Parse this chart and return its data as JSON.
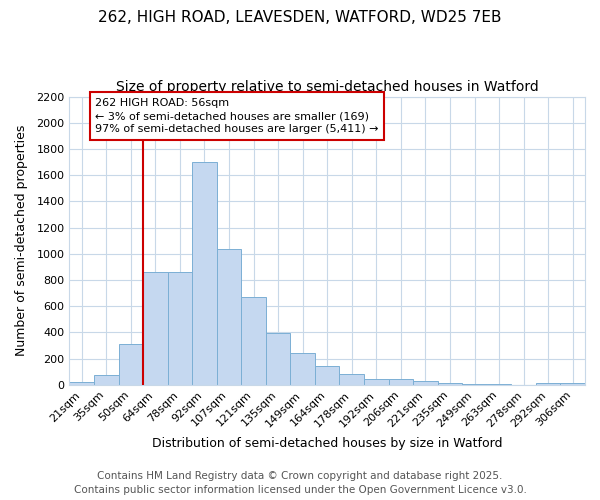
{
  "title1": "262, HIGH ROAD, LEAVESDEN, WATFORD, WD25 7EB",
  "title2": "Size of property relative to semi-detached houses in Watford",
  "xlabel": "Distribution of semi-detached houses by size in Watford",
  "ylabel": "Number of semi-detached properties",
  "categories": [
    "21sqm",
    "35sqm",
    "50sqm",
    "64sqm",
    "78sqm",
    "92sqm",
    "107sqm",
    "121sqm",
    "135sqm",
    "149sqm",
    "164sqm",
    "178sqm",
    "192sqm",
    "206sqm",
    "221sqm",
    "235sqm",
    "249sqm",
    "263sqm",
    "278sqm",
    "292sqm",
    "306sqm"
  ],
  "values": [
    20,
    75,
    310,
    860,
    860,
    1700,
    1040,
    670,
    395,
    245,
    140,
    80,
    45,
    45,
    30,
    15,
    8,
    5,
    2,
    12,
    12
  ],
  "bar_color": "#c5d8f0",
  "bar_edge_color": "#7bafd4",
  "vline_color": "#cc0000",
  "vline_index": 2.5,
  "ylim": [
    0,
    2200
  ],
  "yticks": [
    0,
    200,
    400,
    600,
    800,
    1000,
    1200,
    1400,
    1600,
    1800,
    2000,
    2200
  ],
  "annotation_line1": "262 HIGH ROAD: 56sqm",
  "annotation_line2": "← 3% of semi-detached houses are smaller (169)",
  "annotation_line3": "97% of semi-detached houses are larger (5,411) →",
  "annotation_box_color": "#ffffff",
  "annotation_box_edge": "#cc0000",
  "footer1": "Contains HM Land Registry data © Crown copyright and database right 2025.",
  "footer2": "Contains public sector information licensed under the Open Government Licence v3.0.",
  "bg_color": "#ffffff",
  "grid_color": "#c8d8e8",
  "title_fontsize": 11,
  "subtitle_fontsize": 10,
  "axis_label_fontsize": 9,
  "tick_fontsize": 8,
  "annotation_fontsize": 8,
  "footer_fontsize": 7.5
}
